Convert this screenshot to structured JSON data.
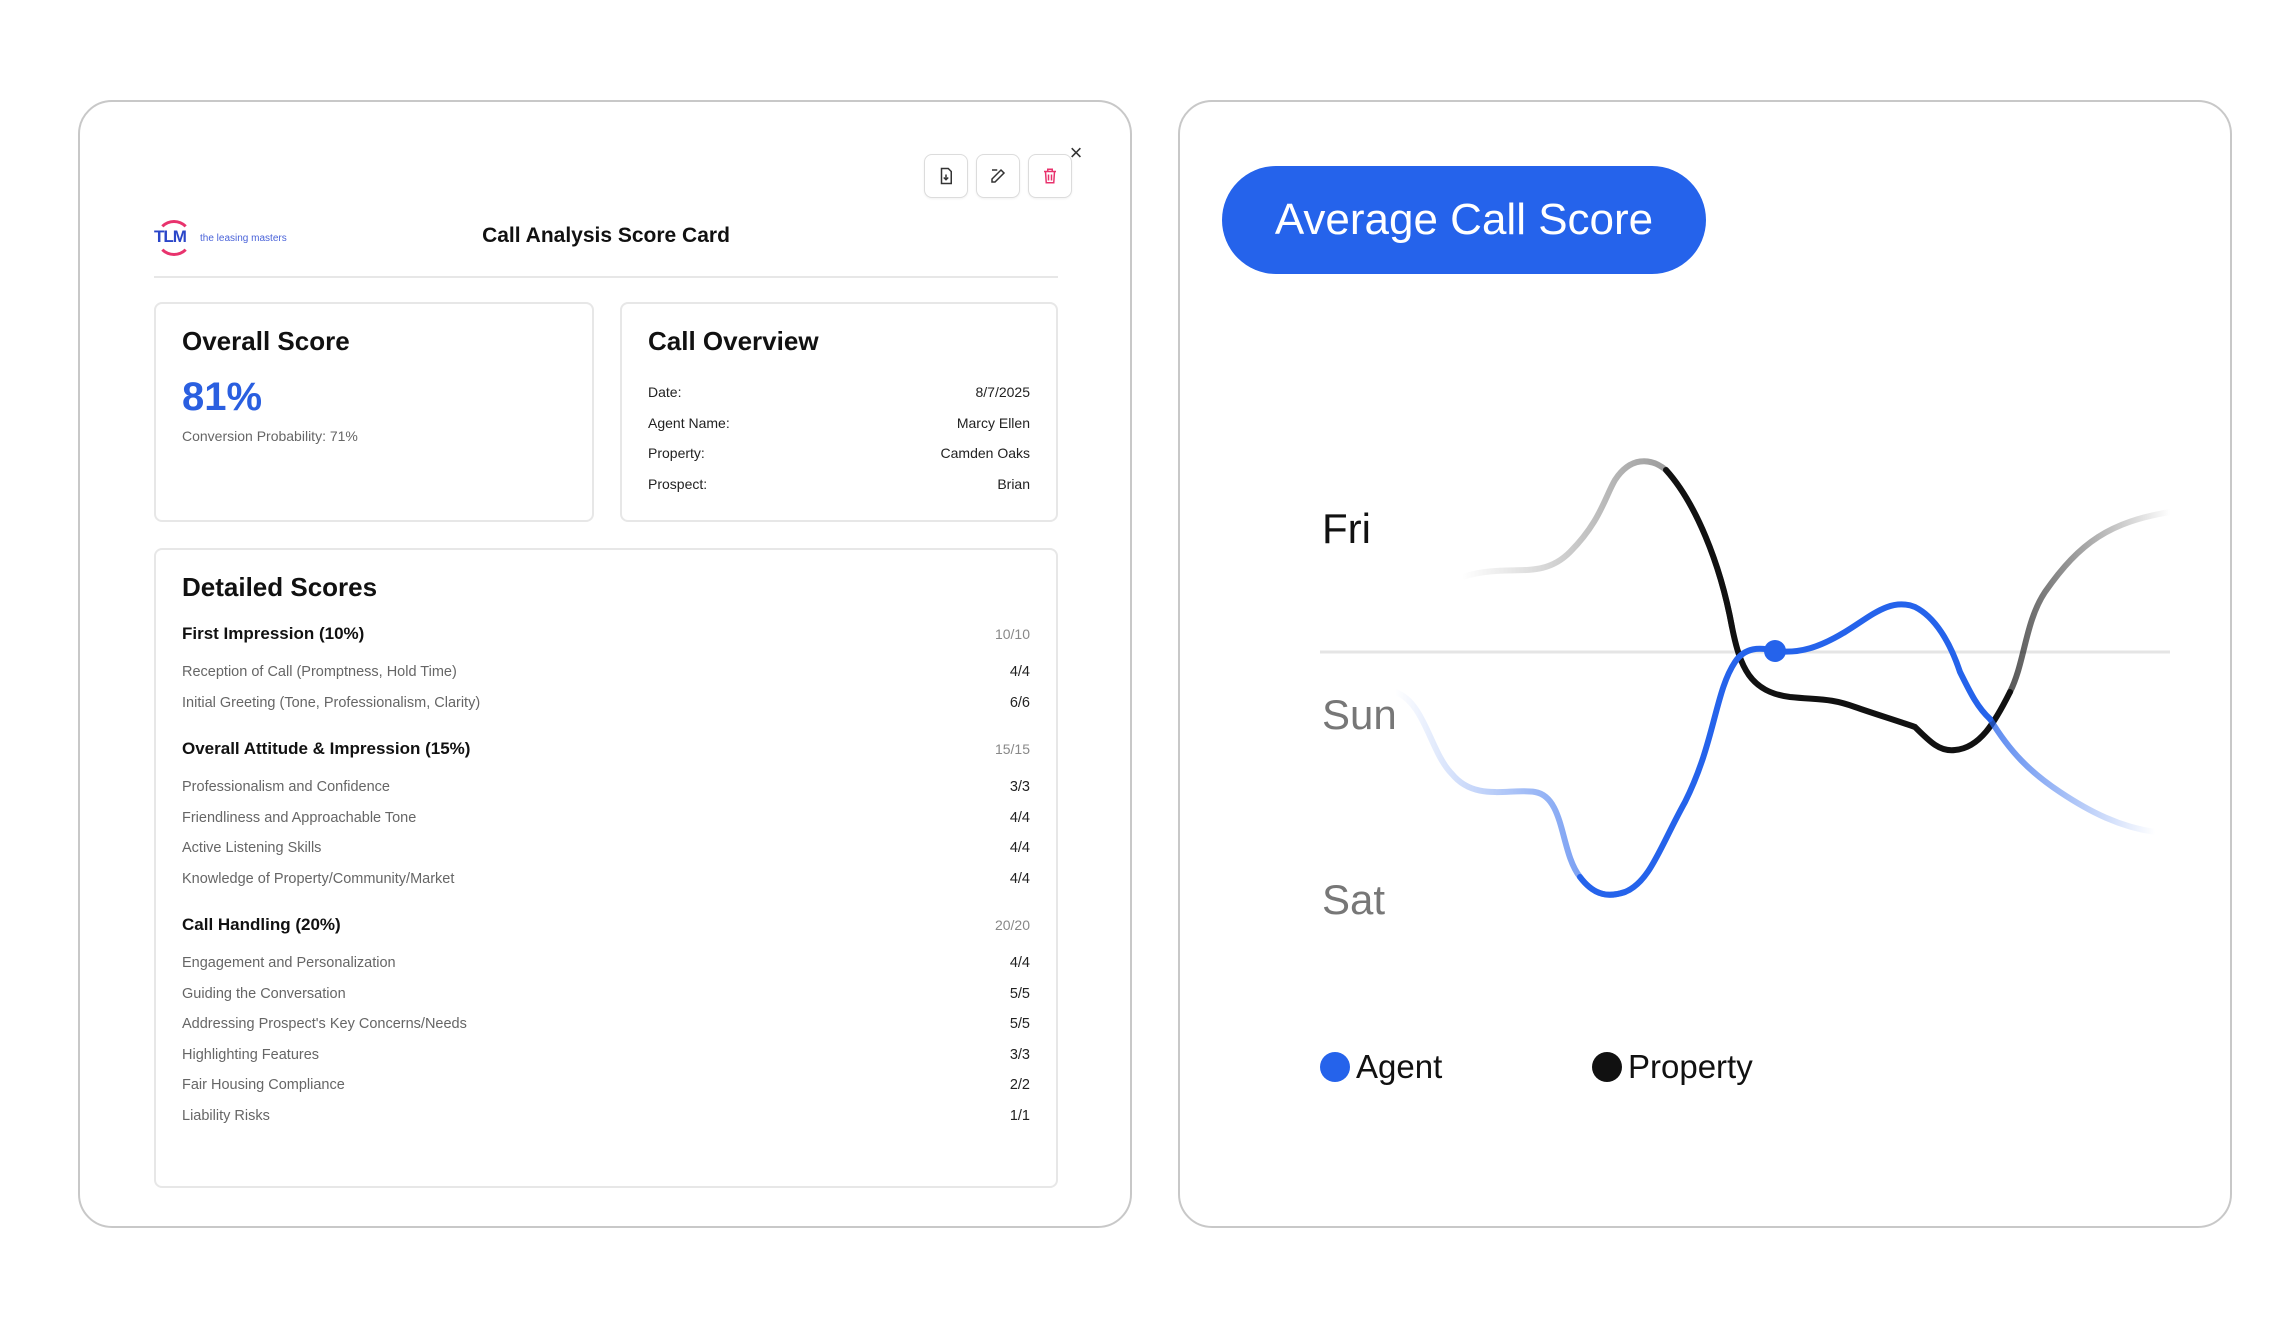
{
  "scorecard": {
    "title": "Call Analysis Score Card",
    "logo": {
      "mark": "TLM",
      "tagline": "the leasing masters",
      "brand_color": "#2a46c9",
      "ring_color": "#e8336d"
    },
    "toolbar": {
      "icons": [
        "download-icon",
        "edit-icon",
        "trash-icon"
      ],
      "delete_color": "#e8336d"
    },
    "close_label": "×",
    "overall": {
      "title": "Overall Score",
      "score": "81%",
      "conversion": "Conversion Probability: 71%",
      "accent": "#2a5fe0"
    },
    "overview": {
      "title": "Call Overview",
      "rows": [
        {
          "label": "Date:",
          "value": "8/7/2025"
        },
        {
          "label": "Agent Name:",
          "value": "Marcy Ellen"
        },
        {
          "label": "Property:",
          "value": "Camden Oaks"
        },
        {
          "label": "Prospect:",
          "value": "Brian"
        }
      ]
    },
    "detailed": {
      "title": "Detailed Scores",
      "sections": [
        {
          "name": "First Impression (10%)",
          "total": "10/10",
          "items": [
            {
              "label": "Reception of Call (Promptness, Hold Time)",
              "score": "4/4"
            },
            {
              "label": "Initial Greeting (Tone, Professionalism, Clarity)",
              "score": "6/6"
            }
          ]
        },
        {
          "name": "Overall Attitude & Impression (15%)",
          "total": "15/15",
          "items": [
            {
              "label": "Professionalism and Confidence",
              "score": "3/3"
            },
            {
              "label": "Friendliness and Approachable Tone",
              "score": "4/4"
            },
            {
              "label": "Active Listening Skills",
              "score": "4/4"
            },
            {
              "label": "Knowledge of Property/Community/Market",
              "score": "4/4"
            }
          ]
        },
        {
          "name": "Call Handling (20%)",
          "total": "20/20",
          "items": [
            {
              "label": "Engagement and Personalization",
              "score": "4/4"
            },
            {
              "label": "Guiding the Conversation",
              "score": "5/5"
            },
            {
              "label": "Addressing Prospect's Key Concerns/Needs",
              "score": "5/5"
            },
            {
              "label": "Highlighting Features",
              "score": "3/3"
            },
            {
              "label": "Fair Housing Compliance",
              "score": "2/2"
            },
            {
              "label": "Liability Risks",
              "score": "1/1"
            }
          ]
        }
      ]
    }
  },
  "average_panel": {
    "title": "Average Call Score",
    "title_bg": "#2563eb",
    "legend": [
      {
        "name": "Agent",
        "color": "#2563eb"
      },
      {
        "name": "Property",
        "color": "#111111"
      }
    ]
  },
  "chart_data": {
    "type": "line",
    "title": "Average Call Score",
    "y_categories": [
      "Fri",
      "Sun",
      "Sat"
    ],
    "series": [
      {
        "name": "Agent",
        "color": "#2563eb"
      },
      {
        "name": "Property",
        "color": "#111111"
      }
    ],
    "grid": false,
    "legend_position": "bottom-left"
  }
}
